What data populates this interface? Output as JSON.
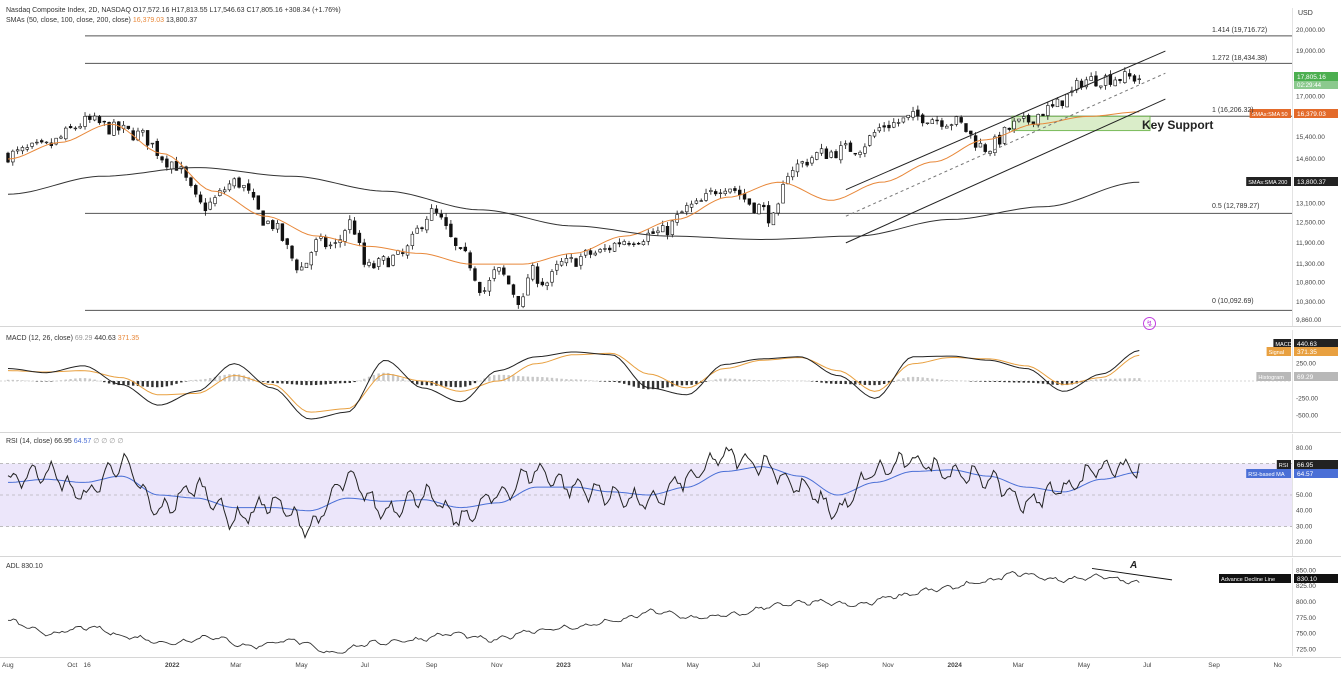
{
  "header": {
    "line1": "Nasdaq Composite Index, 2D, NASDAQ  O17,572.16  H17,813.55  L17,546.63  C17,805.16  +308.34 (+1.76%)",
    "line2_prefix": "SMAs (50, close, 100, close, 200, close)",
    "line2_sma50": "16,379.03",
    "line2_sma200": "13,800.37",
    "currency": "USD"
  },
  "annotations": {
    "key_support": "Key Support",
    "adl_label_a": "A"
  },
  "fib_levels": [
    {
      "label": "1.414 (19,716.72)",
      "value": 19716.72
    },
    {
      "label": "1.272 (18,434.38)",
      "value": 18434.38
    },
    {
      "label": "1 (16,206.32)",
      "value": 16206.32
    },
    {
      "label": "0.5 (12,789.27)",
      "value": 12789.27
    },
    {
      "label": "0 (10,092.69)",
      "value": 10092.69
    }
  ],
  "price_badges": {
    "last": "17,805.16",
    "timer": "02:29:44",
    "sma50_label": "SMAs:SMA 50",
    "sma50_value": "16,379.03",
    "sma200_label": "SMAs:SMA 200",
    "sma200_value": "13,800.37"
  },
  "panels": {
    "macd": {
      "title": "MACD (12, 26, close)",
      "v_hist": "69.29",
      "v_macd": "440.63",
      "v_signal": "371.35",
      "badges": [
        {
          "label": "MACD",
          "value": "440.63"
        },
        {
          "label": "Signal",
          "value": "371.35"
        },
        {
          "label": "Histogram",
          "value": "69.29"
        }
      ]
    },
    "rsi": {
      "title": "RSI (14, close)",
      "v_rsi": "66.95",
      "v_ma": "64.57",
      "badges": [
        {
          "label": "RSI",
          "value": "66.95"
        },
        {
          "label": "RSI-based MA",
          "value": "64.57"
        }
      ]
    },
    "adl": {
      "title": "ADL",
      "value": "830.10",
      "badge_label": "Advance Decline Line",
      "badge_value": "830.10"
    }
  },
  "chart_data": {
    "type": "candlestick",
    "title": "Nasdaq Composite Index, 2D, NASDAQ",
    "x_ticks": [
      "Aug",
      "Oct",
      "16",
      "2022",
      "Mar",
      "May",
      "Jul",
      "Sep",
      "Nov",
      "2023",
      "Mar",
      "May",
      "Jul",
      "Sep",
      "Nov",
      "2024",
      "Mar",
      "May",
      "Jul",
      "Sep",
      "No"
    ],
    "price_axis": {
      "ticks": [
        "20,000.00",
        "19,000.00",
        "17,000.00",
        "15,400.00",
        "14,600.00",
        "13,100.00",
        "12,500.00",
        "11,900.00",
        "11,300.00",
        "10,800.00",
        "10,300.00",
        "9,860.00"
      ],
      "range": [
        9860,
        20000
      ]
    },
    "price_anchors": {
      "months_from_aug_2021": [
        0,
        1,
        2.5,
        3.3,
        4,
        5,
        6,
        7,
        8,
        9,
        9.5,
        10,
        10.5,
        11,
        12,
        13,
        14,
        14.6,
        15,
        15.8,
        16,
        16.5,
        17,
        18,
        19,
        20,
        21,
        22,
        23,
        23.5,
        24,
        25,
        26,
        27,
        28,
        29,
        30,
        31,
        32,
        32.5,
        33,
        34
      ],
      "close": [
        14750,
        15000,
        16000,
        15700,
        15500,
        14500,
        13000,
        13800,
        12500,
        11200,
        11900,
        11800,
        12500,
        11200,
        11500,
        12800,
        11500,
        10600,
        11100,
        10300,
        11100,
        10800,
        11300,
        11600,
        12000,
        12200,
        13000,
        13700,
        13000,
        12600,
        14300,
        14800,
        15000,
        15900,
        16200,
        16000,
        15000,
        15900,
        16500,
        17000,
        17700,
        17805
      ]
    },
    "sma_50_anchors": [
      14600,
      15200,
      15900,
      14800,
      13500,
      12700,
      12100,
      11800,
      11600,
      11300,
      11300,
      11600,
      12100,
      12600,
      13300,
      13800,
      13200,
      13800,
      14500,
      15300,
      15900,
      16200,
      16379
    ],
    "sma_200_anchors": [
      13400,
      14000,
      14300,
      14000,
      13500,
      12900,
      12400,
      12100,
      12000,
      12100,
      12600,
      13000,
      13800
    ],
    "sma_200_start_month": 0,
    "sma_200_end_month": 34.7,
    "trend_channel_upper": {
      "from_month": 25.7,
      "from_value": 13550,
      "to_month": 35.5,
      "to_value": 19000
    },
    "trend_channel_lower": {
      "from_month": 25.7,
      "from_value": 11900,
      "to_month": 35.5,
      "to_value": 16900
    },
    "trend_channel_mid": {
      "from_month": 25.7,
      "from_value": 12700,
      "to_month": 35.5,
      "to_value": 18000
    },
    "macd": {
      "ticks": [
        "250.00",
        "-250.00",
        "-500.00"
      ],
      "range": [
        -650,
        650
      ],
      "macd_anchors": [
        180,
        120,
        220,
        -50,
        -350,
        -150,
        250,
        -100,
        -550,
        -450,
        300,
        -100,
        -300,
        150,
        350,
        420,
        380,
        -100,
        -200,
        240,
        320,
        350,
        80,
        -250,
        350,
        360,
        300,
        180,
        -150,
        100,
        440
      ],
      "signal_anchors": [
        150,
        130,
        150,
        50,
        -200,
        -180,
        80,
        -50,
        -450,
        -400,
        100,
        0,
        -150,
        0,
        250,
        380,
        400,
        100,
        -100,
        180,
        300,
        340,
        150,
        -150,
        250,
        340,
        320,
        220,
        -50,
        50,
        371
      ]
    },
    "rsi": {
      "ticks": [
        "80.00",
        "70.00",
        "50.00",
        "40.00",
        "30.00",
        "20.00"
      ],
      "range": [
        15,
        85
      ],
      "bands": [
        30,
        70
      ],
      "rsi_anchors": [
        60,
        65,
        50,
        70,
        40,
        55,
        35,
        45,
        30,
        60,
        40,
        50,
        35,
        50,
        65,
        55,
        50,
        45,
        60,
        75,
        70,
        55,
        40,
        65,
        72,
        65,
        60,
        45,
        55,
        68,
        67
      ],
      "ma_anchors": [
        58,
        60,
        58,
        62,
        50,
        48,
        42,
        42,
        40,
        48,
        46,
        47,
        42,
        45,
        55,
        55,
        52,
        50,
        55,
        65,
        68,
        62,
        50,
        58,
        65,
        66,
        62,
        55,
        52,
        60,
        64.57
      ]
    },
    "adl": {
      "ticks": [
        "850.00",
        "825.00",
        "800.00",
        "775.00",
        "750.00",
        "725.00"
      ],
      "range": [
        718,
        860
      ],
      "anchors": [
        770,
        750,
        760,
        745,
        735,
        745,
        730,
        740,
        720,
        735,
        740,
        750,
        740,
        755,
        760,
        770,
        785,
        775,
        780,
        795,
        800,
        795,
        810,
        820,
        830,
        845,
        835,
        840,
        830
      ]
    }
  }
}
